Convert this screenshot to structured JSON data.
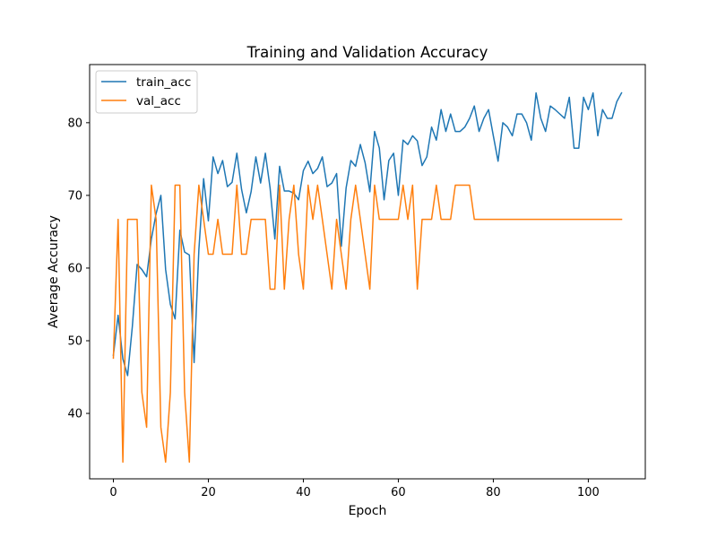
{
  "chart_data": {
    "type": "line",
    "title": "Training and Validation Accuracy",
    "xlabel": "Epoch",
    "ylabel": "Average Accuracy",
    "xlim": [
      -5,
      112
    ],
    "ylim": [
      31,
      88
    ],
    "xticks": [
      0,
      20,
      40,
      60,
      80,
      100
    ],
    "yticks": [
      40,
      50,
      60,
      70,
      80
    ],
    "grid": false,
    "legend_position": "top-left",
    "series": [
      {
        "name": "train_acc",
        "color": "#1f77b4",
        "x": [
          0,
          1,
          2,
          3,
          4,
          5,
          6,
          7,
          8,
          9,
          10,
          11,
          12,
          13,
          14,
          15,
          16,
          17,
          18,
          19,
          20,
          21,
          22,
          23,
          24,
          25,
          26,
          27,
          28,
          29,
          30,
          31,
          32,
          33,
          34,
          35,
          36,
          37,
          38,
          39,
          40,
          41,
          42,
          43,
          44,
          45,
          46,
          47,
          48,
          49,
          50,
          51,
          52,
          53,
          54,
          55,
          56,
          57,
          58,
          59,
          60,
          61,
          62,
          63,
          64,
          65,
          66,
          67,
          68,
          69,
          70,
          71,
          72,
          73,
          74,
          75,
          76,
          77,
          78,
          79,
          80,
          81,
          82,
          83,
          84,
          85,
          86,
          87,
          88,
          89,
          90,
          91,
          92,
          93,
          94,
          95,
          96,
          97,
          98,
          99,
          100,
          101,
          102,
          103,
          104,
          105,
          106,
          107
        ],
        "values": [
          48.0,
          53.5,
          47.5,
          45.2,
          52.0,
          60.5,
          59.8,
          58.8,
          64.0,
          67.5,
          70.0,
          59.8,
          55.0,
          53.0,
          65.2,
          62.2,
          61.8,
          47.0,
          62.5,
          72.3,
          66.5,
          75.3,
          73.0,
          74.8,
          71.2,
          71.8,
          75.8,
          70.8,
          67.6,
          70.5,
          75.3,
          71.7,
          75.8,
          71.0,
          64.0,
          74.0,
          70.6,
          70.6,
          70.3,
          69.4,
          73.4,
          74.7,
          73.0,
          73.7,
          75.3,
          71.2,
          71.7,
          73.0,
          63.0,
          71.0,
          74.8,
          74.0,
          77.0,
          74.5,
          70.5,
          78.8,
          76.5,
          69.4,
          74.8,
          75.8,
          70.0,
          77.6,
          77.0,
          78.2,
          77.5,
          74.1,
          75.3,
          79.4,
          77.6,
          81.8,
          78.8,
          81.2,
          78.8,
          78.8,
          79.4,
          80.6,
          82.3,
          78.8,
          80.6,
          81.8,
          78.2,
          74.7,
          80.0,
          79.4,
          78.2,
          81.2,
          81.2,
          80.0,
          77.6,
          84.1,
          80.6,
          78.8,
          82.3,
          81.8,
          81.2,
          80.6,
          83.5,
          76.5,
          76.5,
          83.5,
          81.8,
          84.1,
          78.2,
          81.8,
          80.6,
          80.6,
          82.9,
          84.1
        ]
      },
      {
        "name": "val_acc",
        "color": "#ff7f0e",
        "x": [
          0,
          1,
          2,
          3,
          4,
          5,
          6,
          7,
          8,
          9,
          10,
          11,
          12,
          13,
          14,
          15,
          16,
          17,
          18,
          19,
          20,
          21,
          22,
          23,
          24,
          25,
          26,
          27,
          28,
          29,
          30,
          31,
          32,
          33,
          34,
          35,
          36,
          37,
          38,
          39,
          40,
          41,
          42,
          43,
          44,
          45,
          46,
          47,
          48,
          49,
          50,
          51,
          52,
          53,
          54,
          55,
          56,
          57,
          58,
          59,
          60,
          61,
          62,
          63,
          64,
          65,
          66,
          67,
          68,
          69,
          70,
          71,
          72,
          73,
          74,
          75,
          76,
          77,
          78,
          79,
          80,
          81,
          82,
          83,
          84,
          85,
          86,
          87,
          88,
          89,
          90,
          91,
          92,
          93,
          94,
          95,
          96,
          97,
          98,
          99,
          100,
          101,
          102,
          103,
          104,
          105,
          106,
          107
        ],
        "values": [
          47.6,
          66.7,
          33.3,
          66.7,
          66.7,
          66.7,
          42.9,
          38.1,
          71.4,
          66.7,
          38.1,
          33.3,
          42.9,
          71.4,
          71.4,
          42.9,
          33.3,
          61.9,
          71.4,
          66.7,
          61.9,
          61.9,
          66.7,
          61.9,
          61.9,
          61.9,
          71.4,
          61.9,
          61.9,
          66.7,
          66.7,
          66.7,
          66.7,
          57.1,
          57.1,
          71.4,
          57.1,
          66.7,
          71.4,
          61.9,
          57.1,
          71.4,
          66.7,
          71.4,
          66.7,
          61.9,
          57.1,
          66.7,
          61.9,
          57.1,
          66.7,
          71.4,
          66.7,
          61.9,
          57.1,
          71.4,
          66.7,
          66.7,
          66.7,
          66.7,
          66.7,
          71.4,
          66.7,
          71.4,
          57.1,
          66.7,
          66.7,
          66.7,
          71.4,
          66.7,
          66.7,
          66.7,
          71.4,
          71.4,
          71.4,
          71.4,
          66.7,
          66.7,
          66.7,
          66.7,
          66.7,
          66.7,
          66.7,
          66.7,
          66.7,
          66.7,
          66.7,
          66.7,
          66.7,
          66.7,
          66.7,
          66.7,
          66.7,
          66.7,
          66.7,
          66.7,
          66.7,
          66.7,
          66.7,
          66.7,
          66.7,
          66.7,
          66.7,
          66.7,
          66.7,
          66.7,
          66.7,
          66.7
        ]
      }
    ]
  }
}
